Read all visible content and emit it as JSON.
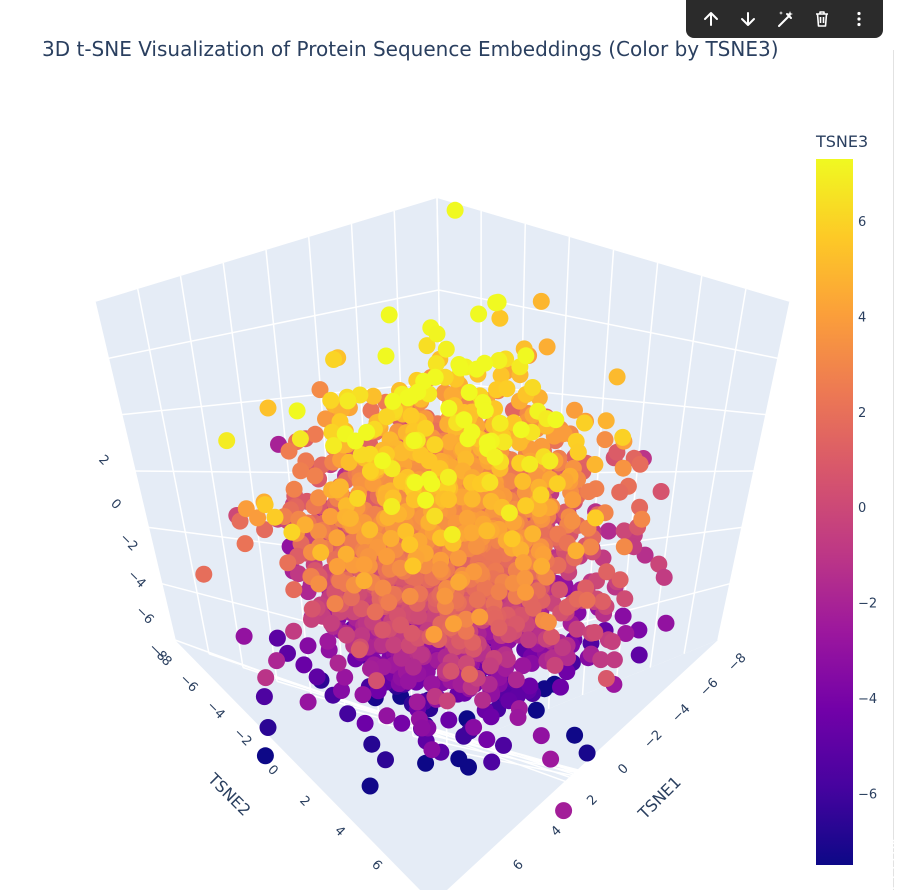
{
  "toolbar": {
    "buttons": [
      "arrow-up-icon",
      "arrow-down-icon",
      "magic-wand-icon",
      "trash-icon",
      "more-vertical-icon"
    ]
  },
  "chart_data": {
    "type": "scatter3d",
    "title": "3D t-SNE Visualization of Protein Sequence Embeddings (Color by TSNE3)",
    "xlabel": "TSNE1",
    "ylabel": "TSNE2",
    "zlabel": "",
    "colorbar_title": "TSNE3",
    "colorscale": "plasma",
    "colorbar_range": [
      -7.5,
      7.3
    ],
    "colorbar_ticks": [
      6,
      4,
      2,
      0,
      -2,
      -4,
      -6
    ],
    "colorbar_tick_labels": [
      "6",
      "4",
      "2",
      "0",
      "−2",
      "−4",
      "−6"
    ],
    "x_ticks": [
      "−8",
      "−6",
      "−4",
      "−2",
      "0",
      "2",
      "4",
      "6"
    ],
    "y_ticks": [
      "−8",
      "−6",
      "−4",
      "−2",
      "0",
      "2",
      "4",
      "6"
    ],
    "z_ticks": [
      "−8",
      "−6",
      "−4",
      "−2",
      "0",
      "2"
    ],
    "xlim": [
      -8.5,
      7.5
    ],
    "ylim": [
      -8.5,
      7.5
    ],
    "zlim": [
      -8.5,
      3
    ],
    "grid": true,
    "legend": "none",
    "point_count_estimate": 4000,
    "point_cloud_description_center": [
      0,
      0,
      0
    ],
    "point_spread": [
      4.5,
      4.5,
      3.5
    ],
    "marker_size": 6
  }
}
